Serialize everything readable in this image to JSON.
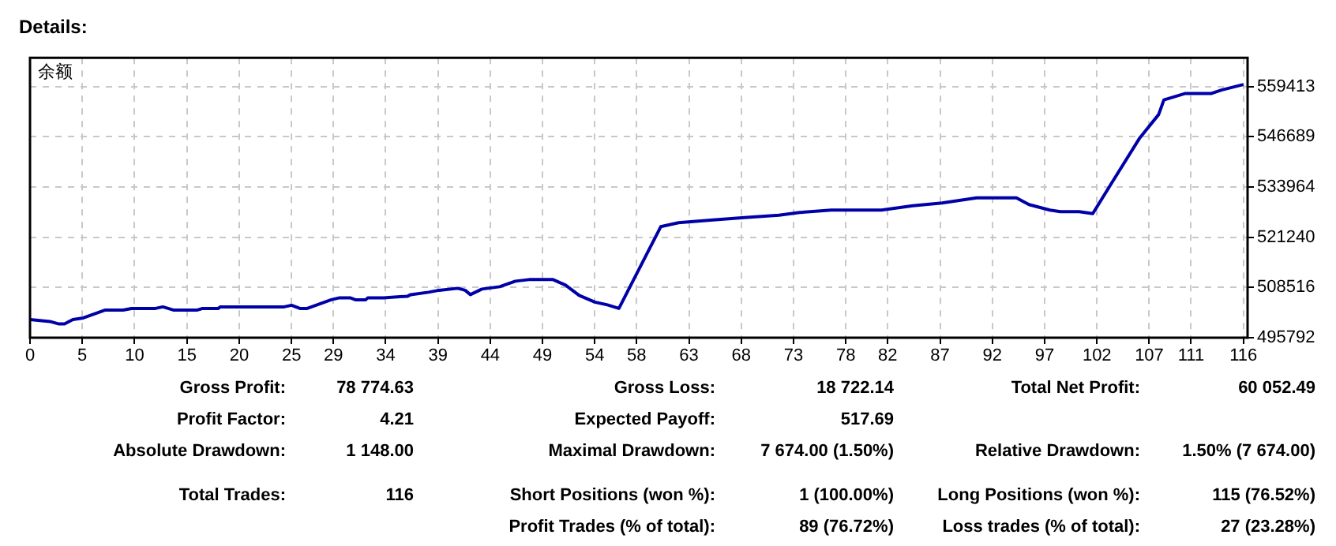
{
  "chart_data": {
    "type": "line",
    "title": "Details:",
    "x": [
      0,
      1.9,
      2.7,
      3.3,
      4.1,
      5.1,
      7.2,
      8.9,
      9.7,
      12,
      12.7,
      13.7,
      16,
      16.5,
      18,
      18.2,
      24.3,
      25,
      25.8,
      26.5,
      28.8,
      29.6,
      30.6,
      31.1,
      32.1,
      32.3,
      33.8,
      36.1,
      36.4,
      38.1,
      39.1,
      40.9,
      41.6,
      42.1,
      43.2,
      44.9,
      46.4,
      47.7,
      50,
      51.2,
      52.5,
      54,
      55.2,
      56.3,
      58,
      60.3,
      62,
      65.3,
      68.3,
      71.6,
      73.6,
      76.6,
      81.4,
      84.4,
      87.2,
      90.5,
      94.3,
      95.5,
      97.5,
      98.5,
      100.3,
      101.6,
      103.3,
      106.1,
      107.9,
      108.4,
      110.4,
      112.9,
      113.9,
      116
    ],
    "series": [
      {
        "name": "余额",
        "color": "#0000a8",
        "values": [
          500400,
          499900,
          499300,
          499300,
          500400,
          500800,
          502800,
          502800,
          503200,
          503200,
          503600,
          502800,
          502800,
          503200,
          503200,
          503600,
          503600,
          504000,
          503200,
          503200,
          505400,
          505900,
          505900,
          505400,
          505400,
          505900,
          505900,
          506300,
          506700,
          507300,
          507800,
          508300,
          507800,
          506700,
          508100,
          508700,
          510100,
          510500,
          510500,
          509100,
          506500,
          504800,
          504100,
          503200,
          512000,
          523900,
          524900,
          525600,
          526200,
          526800,
          527500,
          528100,
          528100,
          529200,
          529900,
          531200,
          531200,
          529500,
          528100,
          527700,
          527700,
          527200,
          534500,
          546400,
          552300,
          556000,
          557600,
          557600,
          558500,
          559900
        ]
      }
    ],
    "xlim": [
      0,
      116.4
    ],
    "xticks": [
      0,
      5,
      10,
      15,
      20,
      25,
      29,
      34,
      39,
      44,
      49,
      54,
      58,
      63,
      68,
      73,
      78,
      82,
      87,
      92,
      97,
      102,
      107,
      111,
      116
    ],
    "ylim": [
      495792,
      566667
    ],
    "yticks": [
      495792,
      508516,
      521240,
      533964,
      546689,
      559413
    ],
    "grid": true,
    "legend": "top left",
    "marker": "none",
    "line_style": "solid",
    "annotations": [
      "Gross Profit:",
      "78 774.63",
      "Gross Loss:",
      "18 722.14",
      "Total Net Profit:",
      "60 052.49",
      "Profit Factor:",
      "4.21",
      "Expected Payoff:",
      "517.69",
      "Absolute Drawdown:",
      "1 148.00",
      "Maximal Drawdown:",
      "7 674.00 (1.50%)",
      "Relative Drawdown:",
      "1.50% (7 674.00)",
      "Total Trades:",
      "116",
      "Short Positions (won %):",
      "1 (100.00%)",
      "Long Positions (won %):",
      "115 (76.52%)",
      "Profit Trades (% of total):",
      "89 (76.72%)",
      "Loss trades (% of total):",
      "27 (23.28%)"
    ]
  }
}
